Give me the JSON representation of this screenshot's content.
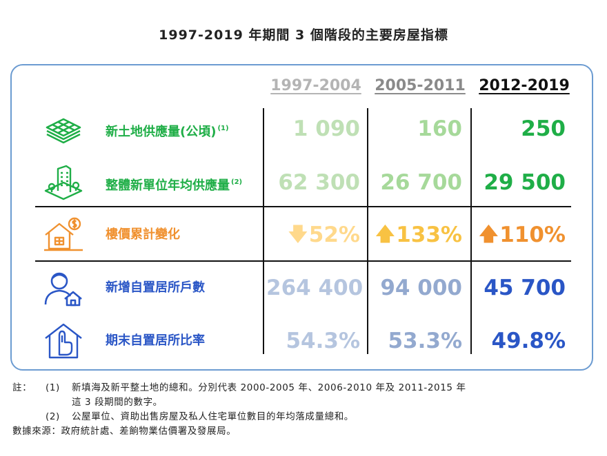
{
  "title": "1997-2019 年期間 3 個階段的主要房屋指標",
  "columns": [
    "1997-2004",
    "2005-2011",
    "2012-2019"
  ],
  "colors": {
    "green_light": "#bfe0b5",
    "green_mid": "#a6d99a",
    "green_dark": "#1fae47",
    "orange_light": "#ffd98c",
    "orange_mid": "#f8c243",
    "orange_dark": "#f0912f",
    "blue_light": "#b5c5df",
    "blue_mid": "#93a9cf",
    "blue_dark": "#2a56c6",
    "border": "#6b9bd1"
  },
  "rows": [
    {
      "label": "新土地供應量(公頃)",
      "note": "(1)",
      "icon": "land-layers-icon",
      "values": [
        "1 090",
        "160",
        "250"
      ]
    },
    {
      "label": "整體新單位年均供應量",
      "note": "(2)",
      "icon": "building-icon",
      "values": [
        "62 300",
        "26 700",
        "29 500"
      ]
    },
    {
      "label": "樓價累計變化",
      "note": "",
      "icon": "house-price-icon",
      "values": [
        "52%",
        "133%",
        "110%"
      ],
      "arrows": [
        "down",
        "up",
        "up"
      ]
    },
    {
      "label": "新增自置居所戶數",
      "note": "",
      "icon": "homeowner-icon",
      "values": [
        "264 400",
        "94 000",
        "45 700"
      ]
    },
    {
      "label": "期末自置居所比率",
      "note": "",
      "icon": "home-key-icon",
      "values": [
        "54.3%",
        "53.3%",
        "49.8%"
      ]
    }
  ],
  "notes": {
    "prefix": "註：",
    "n1_num": "(1)",
    "n1_text": "新填海及新平整土地的總和。分別代表 2000-2005 年、2006-2010 年及 2011-2015 年",
    "n1_cont": "這 3 段期間的數字。",
    "n2_num": "(2)",
    "n2_text": "公屋單位、資助出售房屋及私人住宅單位數目的年均落成量總和。",
    "source": "數據來源：政府統計處、差餉物業估價署及發展局。"
  }
}
